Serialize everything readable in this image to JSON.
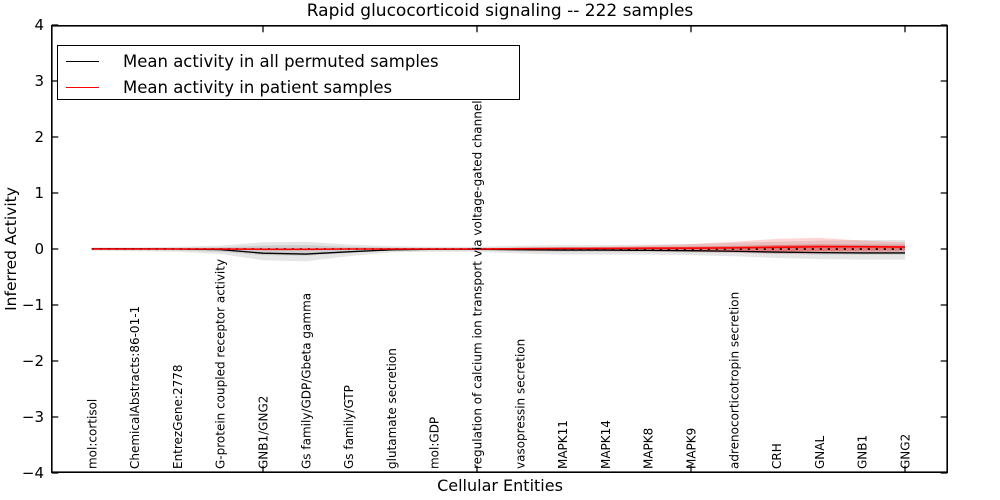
{
  "title": "Rapid glucocorticoid signaling -- 222 samples",
  "axes": {
    "ylabel": "Inferred Activity",
    "xlabel": "Cellular Entities"
  },
  "legend": {
    "position": "upper left",
    "items": [
      {
        "label": "Mean activity in all permuted samples",
        "color": "#000000"
      },
      {
        "label": "Mean activity in patient samples",
        "color": "#ff0000"
      }
    ]
  },
  "colors": {
    "permuted_line": "#000000",
    "patient_line": "#ff0000",
    "permuted_band": "rgba(0,0,0,0.10)",
    "patient_band_outer": "rgba(255,0,0,0.16)",
    "patient_band_inner": "rgba(255,0,0,0.30)",
    "axis": "#000000"
  },
  "chart_data": {
    "type": "line",
    "title": "Rapid glucocorticoid signaling -- 222 samples",
    "xlabel": "Cellular Entities",
    "ylabel": "Inferred Activity",
    "ylim": [
      -4,
      4
    ],
    "yticks": [
      4,
      3,
      2,
      1,
      0,
      -1,
      -2,
      -3,
      -4
    ],
    "xtick_major_positions": [
      5,
      10,
      15,
      20
    ],
    "grid": false,
    "legend_position": "upper left",
    "zero_line": {
      "y": 0,
      "style": "dotted",
      "color": "#000000"
    },
    "categories": [
      "mol:cortisol",
      "ChemicalAbstracts:86-01-1",
      "EntrezGene:2778",
      "G-protein coupled receptor activity",
      "GNB1/GNG2",
      "Gs family/GDP/Gbeta gamma",
      "Gs family/GTP",
      "glutamate secretion",
      "mol:GDP",
      "regulation of calcium ion transport via voltage-gated channels",
      "vasopressin secretion",
      "MAPK11",
      "MAPK14",
      "MAPK8",
      "MAPK9",
      "adrenocorticotropin secretion",
      "CRH",
      "GNAL",
      "GNB1",
      "GNG2"
    ],
    "series": [
      {
        "name": "Mean activity in all permuted samples",
        "color": "#000000",
        "style": "solid",
        "values": [
          0.005,
          0.005,
          0.0,
          -0.01,
          -0.075,
          -0.09,
          -0.05,
          -0.015,
          -0.005,
          -0.005,
          -0.012,
          -0.02,
          -0.02,
          -0.025,
          -0.03,
          -0.04,
          -0.055,
          -0.065,
          -0.07,
          -0.07
        ]
      },
      {
        "name": "Mean activity in patient samples",
        "color": "#ff0000",
        "style": "solid",
        "values": [
          0.0,
          0.0,
          0.0,
          0.0,
          -0.005,
          -0.005,
          0.0,
          0.0,
          0.0,
          0.0,
          0.005,
          0.01,
          0.01,
          0.015,
          0.015,
          0.02,
          0.03,
          0.04,
          0.04,
          0.035
        ]
      }
    ],
    "bands": [
      {
        "name": "permuted-band-outer",
        "fill": "rgba(0,0,0,0.10)",
        "upper": [
          0.03,
          0.03,
          0.04,
          0.06,
          0.12,
          0.13,
          0.08,
          0.05,
          0.04,
          0.04,
          0.06,
          0.07,
          0.07,
          0.08,
          0.09,
          0.11,
          0.13,
          0.15,
          0.16,
          0.16
        ],
        "lower": [
          -0.03,
          -0.04,
          -0.05,
          -0.09,
          -0.2,
          -0.22,
          -0.13,
          -0.06,
          -0.05,
          -0.05,
          -0.08,
          -0.1,
          -0.1,
          -0.1,
          -0.11,
          -0.13,
          -0.16,
          -0.18,
          -0.19,
          -0.19
        ]
      },
      {
        "name": "permuted-band-inner",
        "fill": "rgba(0,0,0,0.10)",
        "upper": [
          0.015,
          0.015,
          0.02,
          0.03,
          0.06,
          0.07,
          0.04,
          0.025,
          0.02,
          0.02,
          0.03,
          0.035,
          0.035,
          0.04,
          0.045,
          0.055,
          0.07,
          0.08,
          0.085,
          0.085
        ],
        "lower": [
          -0.015,
          -0.02,
          -0.025,
          -0.05,
          -0.11,
          -0.12,
          -0.07,
          -0.03,
          -0.025,
          -0.025,
          -0.04,
          -0.05,
          -0.05,
          -0.05,
          -0.06,
          -0.07,
          -0.09,
          -0.1,
          -0.1,
          -0.1
        ]
      },
      {
        "name": "patient-band-outer",
        "fill": "rgba(255,0,0,0.16)",
        "upper": [
          0.005,
          0.005,
          0.005,
          0.005,
          0.01,
          0.01,
          0.005,
          0.005,
          0.005,
          0.005,
          0.012,
          0.02,
          0.04,
          0.06,
          0.09,
          0.13,
          0.18,
          0.2,
          0.15,
          0.12
        ],
        "lower": [
          -0.005,
          -0.005,
          -0.005,
          -0.005,
          -0.01,
          -0.01,
          -0.005,
          -0.005,
          -0.005,
          -0.005,
          -0.012,
          -0.02,
          -0.03,
          -0.04,
          -0.05,
          -0.06,
          -0.08,
          -0.08,
          -0.06,
          -0.05
        ]
      },
      {
        "name": "patient-band-inner",
        "fill": "rgba(255,0,0,0.30)",
        "upper": [
          0,
          0,
          0,
          0,
          0,
          0,
          0,
          0,
          0,
          0,
          0.006,
          0.012,
          0.02,
          0.03,
          0.04,
          0.05,
          0.07,
          0.08,
          0.065,
          0.055
        ],
        "lower": [
          0,
          0,
          0,
          0,
          0,
          0,
          0,
          0,
          0,
          0,
          -0.006,
          -0.012,
          -0.015,
          -0.02,
          -0.025,
          -0.03,
          -0.04,
          -0.04,
          -0.03,
          -0.025
        ]
      }
    ]
  }
}
